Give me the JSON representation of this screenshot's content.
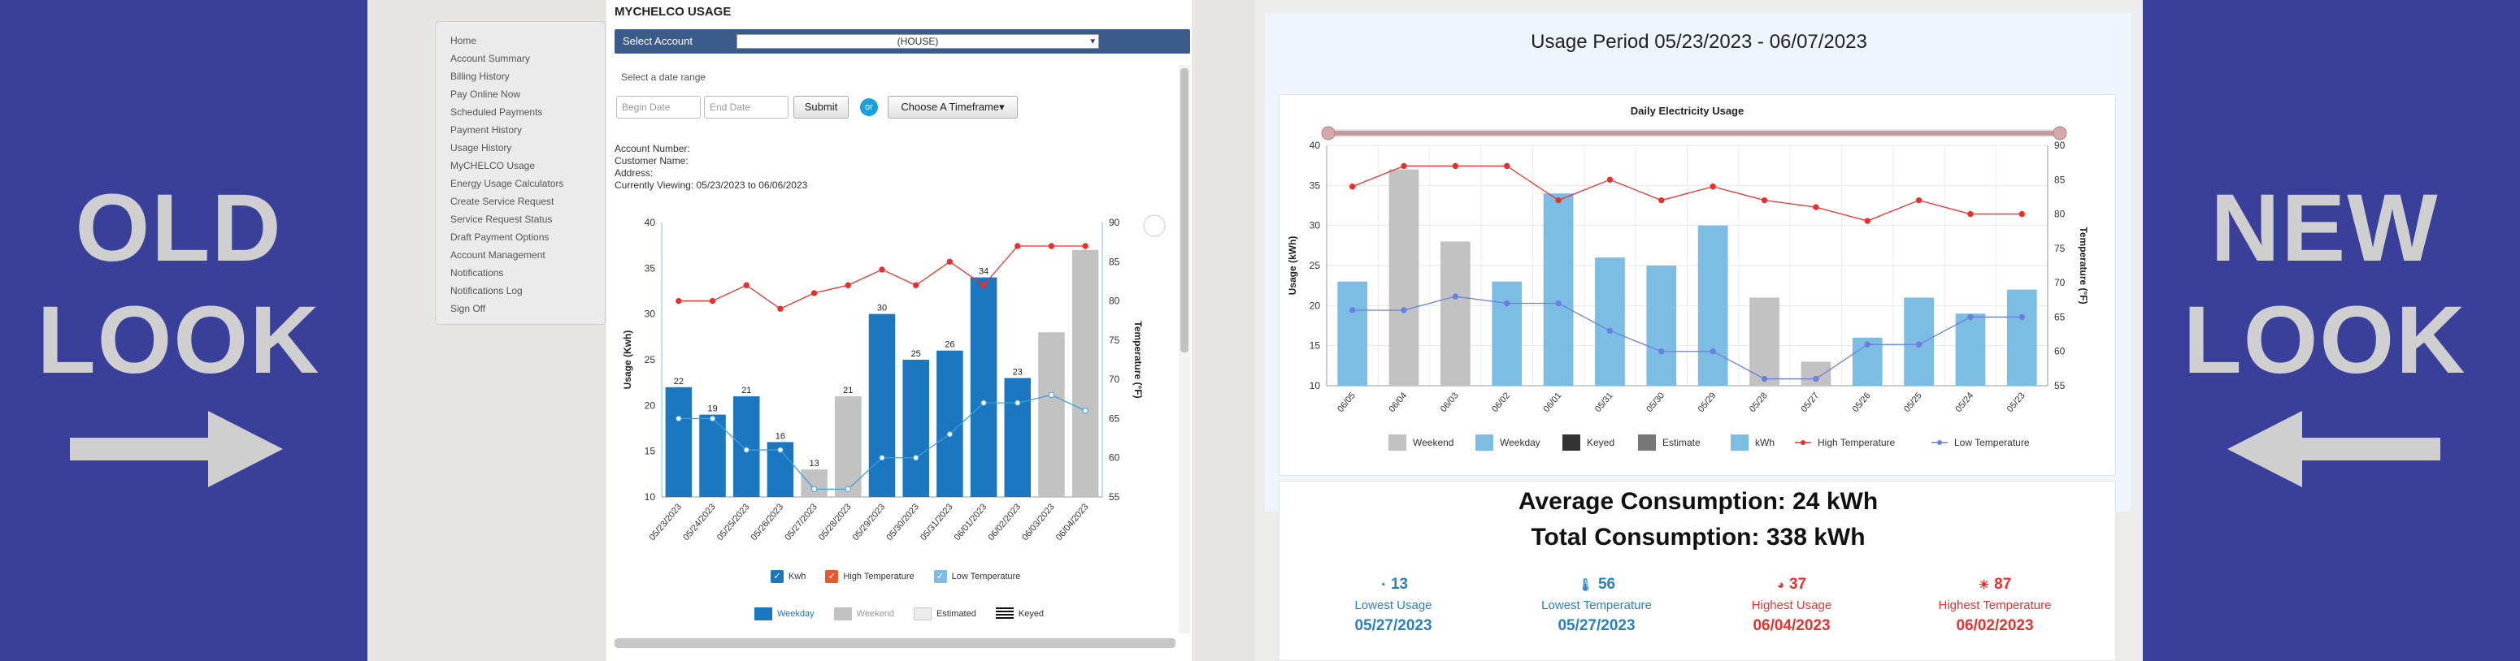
{
  "labels": {
    "old_word1": "OLD",
    "old_word2": "LOOK",
    "new_word1": "NEW",
    "new_word2": "LOOK"
  },
  "colors": {
    "banner": "#3a3f9a",
    "old_bar": "#1b77c0",
    "new_bar": "#7cbde3",
    "est_bar": "#c2c2c2",
    "high": "#e8312e",
    "low": "#6b7fe0"
  },
  "old": {
    "title": "MYCHELCO USAGE",
    "sidebar": [
      "Home",
      "Account Summary",
      "Billing History",
      "Pay Online Now",
      "Scheduled Payments",
      "Payment History",
      "Usage History",
      "MyCHELCO Usage",
      "Energy Usage Calculators",
      "Create Service Request",
      "Service Request Status",
      "Draft Payment Options",
      "Account Management",
      "Notifications",
      "Notifications Log",
      "Sign Off"
    ],
    "select_label": "Select Account",
    "select_value": "(HOUSE)",
    "date_hint": "Select a date range",
    "begin_placeholder": "Begin Date",
    "end_placeholder": "End Date",
    "submit": "Submit",
    "or": "or",
    "timeframe": "Choose A Timeframe",
    "acct_number": "Account Number:",
    "cust_name": "Customer Name:",
    "address": "Address:",
    "viewing_label": "Currently Viewing:",
    "viewing_value": "05/23/2023 to 06/06/2023",
    "legend": {
      "kwh": "Kwh",
      "high": "High Temperature",
      "low": "Low Temperature",
      "weekday": "Weekday",
      "weekend": "Weekend",
      "estimated": "Estimated",
      "keyed": "Keyed"
    }
  },
  "chart_data": [
    {
      "type": "bar",
      "title": "",
      "ylabel": "Usage (Kwh)",
      "y2label": "Temperature (°F)",
      "ylim": [
        10,
        40
      ],
      "y2lim": [
        55,
        90
      ],
      "yticks": [
        "10",
        "15",
        "20",
        "25",
        "30",
        "35",
        "40"
      ],
      "y2ticks": [
        "55",
        "60",
        "65",
        "70",
        "75",
        "80",
        "85",
        "90"
      ],
      "categories": [
        "05/23/2023",
        "05/24/2023",
        "05/25/2023",
        "05/26/2023",
        "05/27/2023",
        "05/28/2023",
        "05/29/2023",
        "05/30/2023",
        "05/31/2023",
        "06/01/2023",
        "06/02/2023",
        "06/03/2023",
        "06/04/2023"
      ],
      "values": [
        22,
        19,
        21,
        16,
        13,
        21,
        30,
        25,
        26,
        34,
        23,
        28,
        37
      ],
      "labels": [
        "22",
        "19",
        "21",
        "16",
        "13",
        "21",
        "30",
        "25",
        "26",
        "34",
        "23",
        "",
        ""
      ],
      "kinds": [
        "weekday",
        "weekday",
        "weekday",
        "weekday",
        "weekend",
        "weekend",
        "weekday",
        "weekday",
        "weekday",
        "weekday",
        "weekday",
        "weekend",
        "weekend"
      ],
      "series": [
        {
          "name": "High Temperature",
          "values": [
            80,
            80,
            82,
            79,
            81,
            82,
            84,
            82,
            85,
            82,
            87,
            87,
            87
          ]
        },
        {
          "name": "Low Temperature",
          "values": [
            65,
            65,
            61,
            61,
            56,
            56,
            60,
            60,
            63,
            67,
            67,
            68,
            66
          ]
        }
      ]
    },
    {
      "type": "bar",
      "title": "Daily Electricity Usage",
      "ylabel": "Usage (kWh)",
      "y2label": "Temperature (°F)",
      "ylim": [
        10,
        40
      ],
      "y2lim": [
        55,
        90
      ],
      "yticks": [
        "10",
        "15",
        "20",
        "25",
        "30",
        "35",
        "40"
      ],
      "y2ticks": [
        "55",
        "60",
        "65",
        "70",
        "75",
        "80",
        "85",
        "90"
      ],
      "categories": [
        "06/05",
        "06/04",
        "06/03",
        "06/02",
        "06/01",
        "05/31",
        "05/30",
        "05/29",
        "05/28",
        "05/27",
        "05/26",
        "05/25",
        "05/24",
        "05/23"
      ],
      "values": [
        23,
        37,
        28,
        23,
        34,
        26,
        25,
        30,
        21,
        13,
        16,
        21,
        19,
        22
      ],
      "kinds": [
        "weekday",
        "weekend",
        "weekend",
        "weekday",
        "weekday",
        "weekday",
        "weekday",
        "weekday",
        "weekend",
        "weekend",
        "weekday",
        "weekday",
        "weekday",
        "weekday"
      ],
      "series": [
        {
          "name": "High Temperature",
          "values": [
            84,
            87,
            87,
            87,
            82,
            85,
            82,
            84,
            82,
            81,
            79,
            82,
            80,
            80
          ]
        },
        {
          "name": "Low Temperature",
          "values": [
            66,
            66,
            68,
            67,
            67,
            63,
            60,
            60,
            56,
            56,
            61,
            61,
            65,
            65
          ]
        }
      ]
    }
  ],
  "new": {
    "heading": "Usage Period 05/23/2023 - 06/07/2023",
    "legend": {
      "weekend": "Weekend",
      "weekday": "Weekday",
      "keyed": "Keyed",
      "estimate": "Estimate",
      "kwh": "kWh",
      "high": "High Temperature",
      "low": "Low Temperature"
    },
    "avg": "Average Consumption: 24 kWh",
    "total": "Total Consumption: 338 kWh",
    "stats": [
      {
        "num": "13",
        "label": "Lowest Usage",
        "date": "05/27/2023",
        "color": "#2a7fc0",
        "icon": "gauge-low-icon"
      },
      {
        "num": "56",
        "label": "Lowest Temperature",
        "date": "05/27/2023",
        "color": "#2a7fc0",
        "icon": "thermometer-low-icon"
      },
      {
        "num": "37",
        "label": "Highest Usage",
        "date": "06/04/2023",
        "color": "#e8312e",
        "icon": "gauge-high-icon"
      },
      {
        "num": "87",
        "label": "Highest Temperature",
        "date": "06/02/2023",
        "color": "#e8312e",
        "icon": "sun-icon"
      }
    ]
  }
}
